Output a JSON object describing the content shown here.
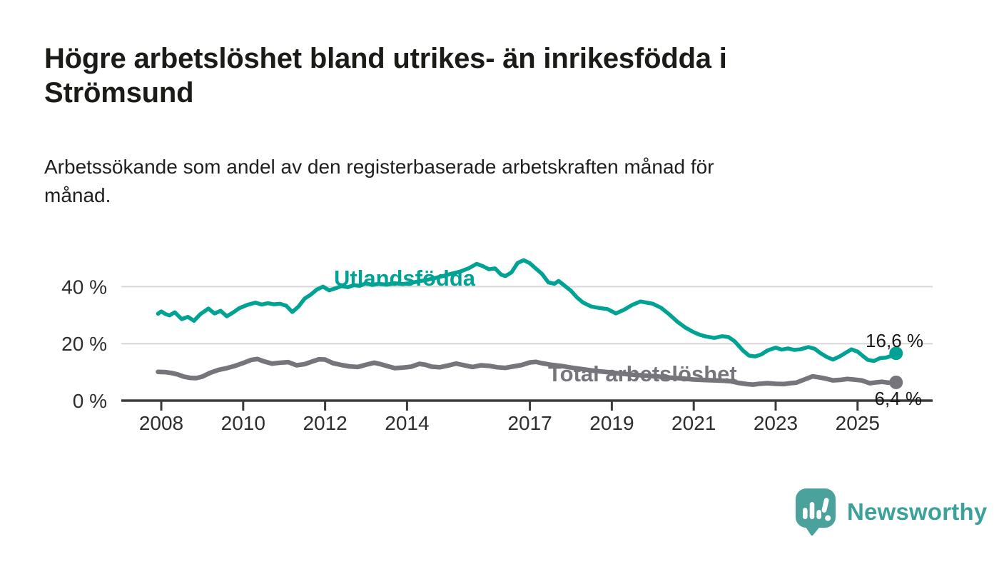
{
  "header": {
    "title_line1": "Högre arbetslöshet bland utrikes- än inrikesfödda i",
    "title_line2": "Strömsund",
    "subtitle_line1": "Arbetssökande som andel av den registerbaserade arbetskraften månad för",
    "subtitle_line2": "månad."
  },
  "branding": {
    "logo_text": "Newsworthy",
    "logo_icon": "speech-bubble-bar-chart-icon",
    "bubble_color": "#4ba29c",
    "text_color": "#3ca19a"
  },
  "colors": {
    "series_foreign": "#00a294",
    "series_total": "#76757c",
    "annotation_text": "#1a1a1a",
    "axis_text": "#2d2d2d",
    "axis_line": "#3b3b3b",
    "gridline": "#d8d8d8"
  },
  "chart_data": {
    "type": "line",
    "title": "Högre arbetslöshet bland utrikes- än inrikesfödda i Strömsund",
    "subtitle": "Arbetssökande som andel av den registerbaserade arbetskraften månad för månad.",
    "unit": "%",
    "grid": "horizontal-only",
    "legend_position": "inline-labels",
    "x_axis": {
      "range": [
        2007.9,
        2026.2
      ],
      "ticks": [
        {
          "value": 2008,
          "label": "2008"
        },
        {
          "value": 2010,
          "label": "2010"
        },
        {
          "value": 2012,
          "label": "2012"
        },
        {
          "value": 2014,
          "label": "2014"
        },
        {
          "value": 2017,
          "label": "2017"
        },
        {
          "value": 2019,
          "label": "2019"
        },
        {
          "value": 2021,
          "label": "2021"
        },
        {
          "value": 2023,
          "label": "2023"
        },
        {
          "value": 2025,
          "label": "2025"
        }
      ]
    },
    "y_axis": {
      "range": [
        0,
        52
      ],
      "gridlines": [
        20,
        40
      ],
      "ticks": [
        {
          "value": 0,
          "label": "0 %"
        },
        {
          "value": 20,
          "label": "20 %"
        },
        {
          "value": 40,
          "label": "40 %"
        }
      ]
    },
    "series": [
      {
        "name": "Utlandsfödda",
        "color": "#00a294",
        "end_value": 16.6,
        "end_label": "16,6 %",
        "points": [
          [
            2007.92,
            30.5
          ],
          [
            2008.0,
            31.3
          ],
          [
            2008.1,
            30.4
          ],
          [
            2008.2,
            29.9
          ],
          [
            2008.33,
            31.0
          ],
          [
            2008.5,
            28.6
          ],
          [
            2008.65,
            29.4
          ],
          [
            2008.8,
            28.0
          ],
          [
            2008.95,
            30.3
          ],
          [
            2009.15,
            32.3
          ],
          [
            2009.3,
            30.6
          ],
          [
            2009.45,
            31.5
          ],
          [
            2009.6,
            29.6
          ],
          [
            2009.75,
            30.9
          ],
          [
            2009.9,
            32.4
          ],
          [
            2010.1,
            33.6
          ],
          [
            2010.3,
            34.4
          ],
          [
            2010.45,
            33.7
          ],
          [
            2010.6,
            34.2
          ],
          [
            2010.75,
            33.8
          ],
          [
            2010.9,
            34.0
          ],
          [
            2011.05,
            33.3
          ],
          [
            2011.2,
            31.1
          ],
          [
            2011.35,
            33.0
          ],
          [
            2011.5,
            35.8
          ],
          [
            2011.65,
            37.2
          ],
          [
            2011.8,
            39.0
          ],
          [
            2011.95,
            40.0
          ],
          [
            2012.1,
            38.7
          ],
          [
            2012.25,
            39.4
          ],
          [
            2012.4,
            40.2
          ],
          [
            2012.55,
            39.8
          ],
          [
            2012.7,
            40.5
          ],
          [
            2012.85,
            40.3
          ],
          [
            2013.0,
            41.2
          ],
          [
            2013.15,
            40.6
          ],
          [
            2013.3,
            41.0
          ],
          [
            2013.5,
            40.7
          ],
          [
            2013.7,
            41.2
          ],
          [
            2013.9,
            40.9
          ],
          [
            2014.1,
            41.3
          ],
          [
            2014.3,
            41.9
          ],
          [
            2014.5,
            42.4
          ],
          [
            2014.7,
            43.1
          ],
          [
            2014.9,
            43.8
          ],
          [
            2015.1,
            44.6
          ],
          [
            2015.3,
            45.3
          ],
          [
            2015.5,
            46.4
          ],
          [
            2015.7,
            48.0
          ],
          [
            2015.85,
            47.2
          ],
          [
            2016.0,
            46.1
          ],
          [
            2016.15,
            46.4
          ],
          [
            2016.3,
            44.2
          ],
          [
            2016.4,
            43.7
          ],
          [
            2016.55,
            45.0
          ],
          [
            2016.7,
            48.3
          ],
          [
            2016.85,
            49.3
          ],
          [
            2017.0,
            48.2
          ],
          [
            2017.15,
            46.3
          ],
          [
            2017.3,
            44.4
          ],
          [
            2017.45,
            41.5
          ],
          [
            2017.6,
            41.0
          ],
          [
            2017.7,
            42.0
          ],
          [
            2017.85,
            40.3
          ],
          [
            2018.0,
            38.6
          ],
          [
            2018.15,
            36.2
          ],
          [
            2018.3,
            34.4
          ],
          [
            2018.5,
            33.0
          ],
          [
            2018.7,
            32.5
          ],
          [
            2018.9,
            32.1
          ],
          [
            2019.1,
            30.6
          ],
          [
            2019.3,
            31.9
          ],
          [
            2019.5,
            33.6
          ],
          [
            2019.7,
            34.8
          ],
          [
            2019.85,
            34.4
          ],
          [
            2020.0,
            34.0
          ],
          [
            2020.2,
            32.6
          ],
          [
            2020.4,
            30.3
          ],
          [
            2020.6,
            27.7
          ],
          [
            2020.8,
            25.6
          ],
          [
            2021.0,
            24.0
          ],
          [
            2021.15,
            23.1
          ],
          [
            2021.3,
            22.5
          ],
          [
            2021.5,
            22.0
          ],
          [
            2021.7,
            22.6
          ],
          [
            2021.85,
            22.3
          ],
          [
            2022.0,
            20.8
          ],
          [
            2022.2,
            17.6
          ],
          [
            2022.35,
            15.8
          ],
          [
            2022.5,
            15.5
          ],
          [
            2022.65,
            16.2
          ],
          [
            2022.8,
            17.6
          ],
          [
            2023.0,
            18.6
          ],
          [
            2023.15,
            17.9
          ],
          [
            2023.3,
            18.3
          ],
          [
            2023.45,
            17.8
          ],
          [
            2023.6,
            18.0
          ],
          [
            2023.8,
            18.8
          ],
          [
            2023.95,
            18.2
          ],
          [
            2024.1,
            16.6
          ],
          [
            2024.25,
            15.3
          ],
          [
            2024.4,
            14.4
          ],
          [
            2024.55,
            15.4
          ],
          [
            2024.7,
            16.7
          ],
          [
            2024.85,
            18.0
          ],
          [
            2025.0,
            17.2
          ],
          [
            2025.1,
            16.0
          ],
          [
            2025.25,
            14.3
          ],
          [
            2025.4,
            13.9
          ],
          [
            2025.55,
            14.9
          ],
          [
            2025.7,
            15.1
          ],
          [
            2025.8,
            15.6
          ],
          [
            2025.94,
            16.6
          ]
        ]
      },
      {
        "name": "Total arbetslöshet",
        "color": "#76757c",
        "end_value": 6.4,
        "end_label": "6,4 %",
        "points": [
          [
            2007.92,
            10.1
          ],
          [
            2008.1,
            10.0
          ],
          [
            2008.25,
            9.7
          ],
          [
            2008.4,
            9.2
          ],
          [
            2008.55,
            8.4
          ],
          [
            2008.7,
            8.0
          ],
          [
            2008.85,
            7.9
          ],
          [
            2009.0,
            8.4
          ],
          [
            2009.2,
            9.8
          ],
          [
            2009.4,
            10.8
          ],
          [
            2009.6,
            11.4
          ],
          [
            2009.8,
            12.2
          ],
          [
            2010.0,
            13.2
          ],
          [
            2010.2,
            14.3
          ],
          [
            2010.35,
            14.6
          ],
          [
            2010.5,
            13.8
          ],
          [
            2010.7,
            13.0
          ],
          [
            2010.9,
            13.3
          ],
          [
            2011.1,
            13.5
          ],
          [
            2011.3,
            12.4
          ],
          [
            2011.5,
            12.8
          ],
          [
            2011.7,
            13.8
          ],
          [
            2011.85,
            14.5
          ],
          [
            2012.0,
            14.4
          ],
          [
            2012.2,
            13.1
          ],
          [
            2012.4,
            12.5
          ],
          [
            2012.6,
            12.0
          ],
          [
            2012.8,
            11.8
          ],
          [
            2013.0,
            12.6
          ],
          [
            2013.2,
            13.3
          ],
          [
            2013.35,
            12.8
          ],
          [
            2013.5,
            12.2
          ],
          [
            2013.7,
            11.4
          ],
          [
            2013.9,
            11.6
          ],
          [
            2014.1,
            11.9
          ],
          [
            2014.3,
            12.9
          ],
          [
            2014.45,
            12.6
          ],
          [
            2014.6,
            11.9
          ],
          [
            2014.8,
            11.7
          ],
          [
            2015.0,
            12.3
          ],
          [
            2015.2,
            13.0
          ],
          [
            2015.4,
            12.4
          ],
          [
            2015.6,
            11.8
          ],
          [
            2015.8,
            12.4
          ],
          [
            2016.0,
            12.2
          ],
          [
            2016.2,
            11.7
          ],
          [
            2016.4,
            11.5
          ],
          [
            2016.6,
            12.0
          ],
          [
            2016.8,
            12.5
          ],
          [
            2017.0,
            13.4
          ],
          [
            2017.15,
            13.6
          ],
          [
            2017.3,
            13.1
          ],
          [
            2017.5,
            12.6
          ],
          [
            2017.75,
            12.2
          ],
          [
            2018.0,
            11.6
          ],
          [
            2018.3,
            11.0
          ],
          [
            2018.6,
            10.4
          ],
          [
            2018.9,
            10.0
          ],
          [
            2019.2,
            9.5
          ],
          [
            2019.5,
            9.1
          ],
          [
            2019.8,
            8.8
          ],
          [
            2020.1,
            8.5
          ],
          [
            2020.4,
            8.1
          ],
          [
            2020.7,
            7.8
          ],
          [
            2021.0,
            7.4
          ],
          [
            2021.3,
            7.2
          ],
          [
            2021.5,
            7.1
          ],
          [
            2021.7,
            7.0
          ],
          [
            2021.9,
            6.8
          ],
          [
            2022.1,
            6.2
          ],
          [
            2022.3,
            5.8
          ],
          [
            2022.45,
            5.6
          ],
          [
            2022.6,
            5.9
          ],
          [
            2022.8,
            6.1
          ],
          [
            2023.0,
            5.9
          ],
          [
            2023.2,
            5.8
          ],
          [
            2023.35,
            6.1
          ],
          [
            2023.5,
            6.3
          ],
          [
            2023.7,
            7.4
          ],
          [
            2023.9,
            8.5
          ],
          [
            2024.05,
            8.2
          ],
          [
            2024.2,
            7.8
          ],
          [
            2024.4,
            7.1
          ],
          [
            2024.6,
            7.3
          ],
          [
            2024.75,
            7.6
          ],
          [
            2024.9,
            7.4
          ],
          [
            2025.1,
            7.1
          ],
          [
            2025.3,
            6.1
          ],
          [
            2025.45,
            6.4
          ],
          [
            2025.6,
            6.6
          ],
          [
            2025.75,
            6.3
          ],
          [
            2025.94,
            6.4
          ]
        ]
      }
    ]
  }
}
